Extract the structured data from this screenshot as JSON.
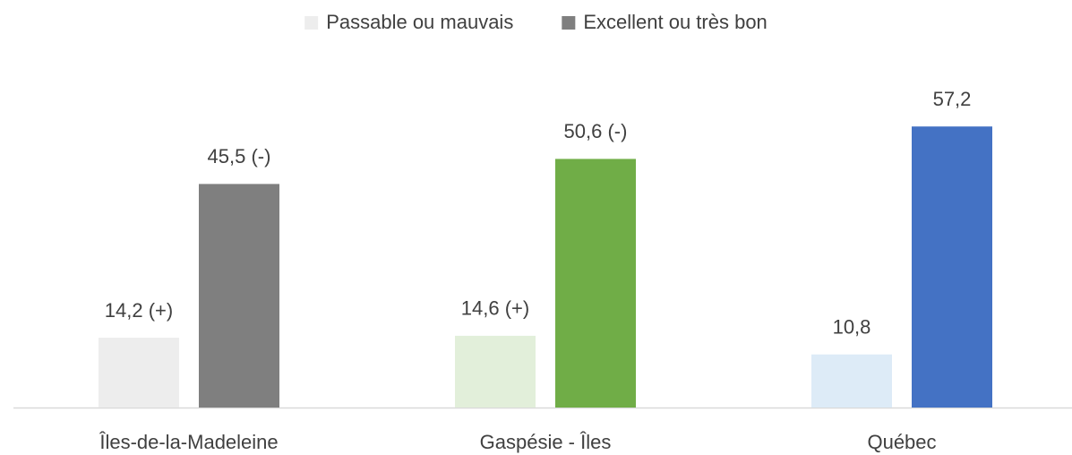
{
  "chart_data": {
    "type": "bar",
    "categories": [
      "Îles-de-la-Madeleine",
      "Gaspésie - Îles",
      "Québec"
    ],
    "series": [
      {
        "name": "Passable ou mauvais",
        "color": "#ededed",
        "point_colors": [
          "#ededed",
          "#e2efda",
          "#ddebf7"
        ],
        "values": [
          14.2,
          14.6,
          10.8
        ],
        "value_labels": [
          "14,2 (+)",
          "14,6 (+)",
          "10,8"
        ]
      },
      {
        "name": "Excellent ou très bon",
        "color": "#7f7f7f",
        "point_colors": [
          "#7f7f7f",
          "#70ad47",
          "#4472c4"
        ],
        "values": [
          45.5,
          50.6,
          57.2
        ],
        "value_labels": [
          "45,5 (-)",
          "50,6 (-)",
          "57,2"
        ]
      }
    ],
    "ylim": [
      0,
      70
    ],
    "legend": "top"
  }
}
